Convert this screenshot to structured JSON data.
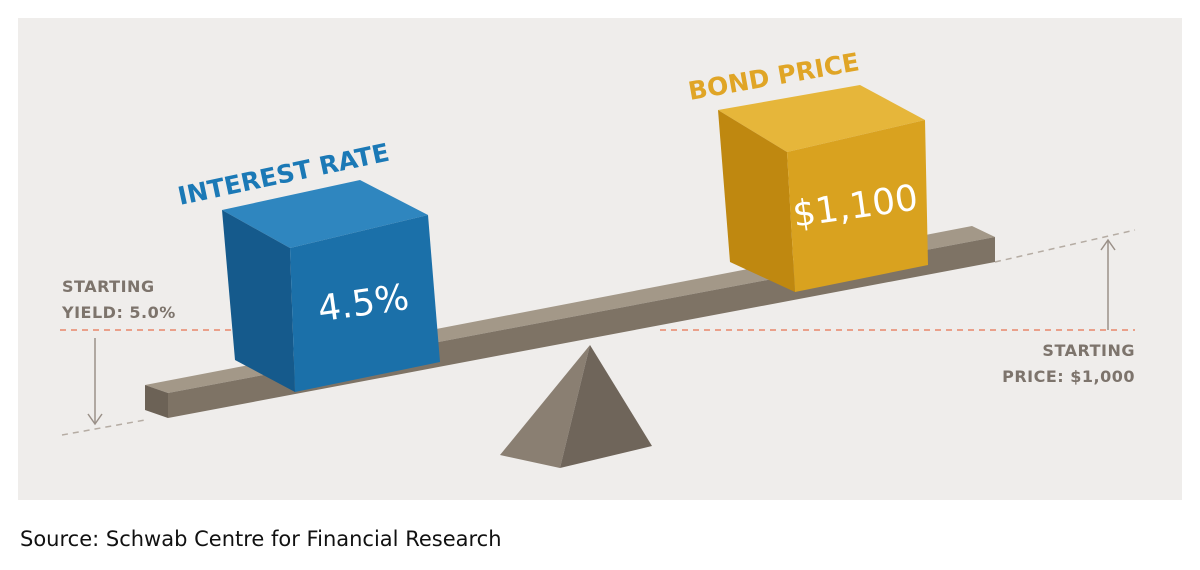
{
  "interest_rate": {
    "title": "INTEREST RATE",
    "value": "4.5%"
  },
  "bond_price": {
    "title": "BOND PRICE",
    "value": "$1,100"
  },
  "starting_yield": {
    "line1": "STARTING",
    "line2": "YIELD: 5.0%"
  },
  "starting_price": {
    "line1": "STARTING",
    "line2": "PRICE: $1,000"
  },
  "source": "Source: Schwab Centre for Financial Research"
}
